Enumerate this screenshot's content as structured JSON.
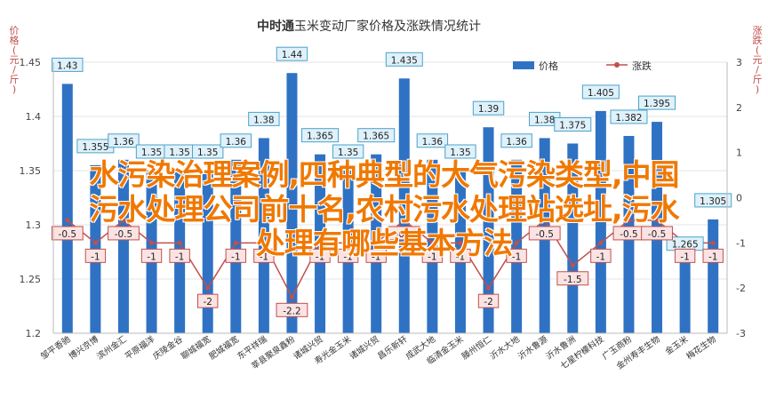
{
  "chart_data": {
    "type": "bar",
    "title_bold": "中时通",
    "title_rest": "玉米变动厂家价格及涨跌情况统计",
    "ylabel_left": "价格(元/斤)",
    "ylabel_right": "涨跌(元/斤)",
    "legend": [
      "价格",
      "涨跌"
    ],
    "ylim_left": [
      1.2,
      1.45
    ],
    "yticks_left": [
      "1.45",
      "1.4",
      "1.35",
      "1.3",
      "1.25",
      "1.2"
    ],
    "ylim_right": [
      -3,
      3
    ],
    "yticks_right": [
      "3",
      "2",
      "1",
      "0",
      "-1",
      "-2",
      "-3"
    ],
    "categories": [
      "邹平香驰",
      "博兴京博",
      "滨州金汇",
      "平原福洋",
      "庆陵金谷",
      "聊城福宽",
      "肥城福宽",
      "东平祥瑞",
      "莘县聚泉鑫粉",
      "诸城兴贸",
      "寿光金玉米",
      "诸城兴贸",
      "昌乐新轩",
      "成武大地",
      "临清金玉米",
      "滕州恒仁",
      "沂水大地",
      "沂水鲁源",
      "沂水鲁洲",
      "七星柠檬科技",
      "广玉商粉",
      "金州寿丰生物",
      "金玉米",
      "梅花生物"
    ],
    "series": [
      {
        "name": "价格",
        "values": [
          1.43,
          1.355,
          1.36,
          1.35,
          1.35,
          1.35,
          1.36,
          1.38,
          1.44,
          1.365,
          1.35,
          1.365,
          1.435,
          1.36,
          1.35,
          1.39,
          1.36,
          1.38,
          1.375,
          1.405,
          1.382,
          1.395,
          1.265,
          1.305
        ]
      },
      {
        "name": "涨跌",
        "values": [
          -0.5,
          -1,
          -0.5,
          -1,
          -1,
          -2,
          -1,
          -1,
          -2.2,
          -1,
          -1,
          -1,
          -0.5,
          -1,
          -1,
          -2,
          -1,
          -0.5,
          -1.5,
          -1,
          -0.5,
          -0.5,
          -1,
          -1
        ]
      }
    ],
    "bar_labels": [
      "1.43",
      "1.355",
      "1.36",
      "1.35",
      "1.35",
      "1.35",
      "1.36",
      "1.38",
      "1.44",
      "1.365",
      "1.35",
      "1.365",
      "1.435",
      "1.36",
      "1.35",
      "1.39",
      "1.36",
      "1.38",
      "1.375",
      "1.405",
      "1.382",
      "1.395",
      "1.265",
      "1.305"
    ],
    "line_labels": [
      "-0.5",
      "-1",
      "-0.5",
      "-1",
      "-1",
      "-2",
      "-1",
      "-1",
      "-2.2",
      "-1",
      "-1",
      "-1",
      "-0.5",
      "-1",
      "-1",
      "-2",
      "-1",
      "-0.5",
      "-1.5",
      "-1",
      "-0.5",
      "-0.5",
      "-1",
      "-1"
    ],
    "colors": {
      "bar": "#2f72c4",
      "line": "#c0504d",
      "bar_label_bg": "#dff1fb",
      "bar_label_border": "#4aa3c8",
      "line_label_bg": "#fbe3e3",
      "line_label_border": "#c0504d",
      "grid": "#e6e6e6",
      "axis_label": "#c0504d",
      "overlay_text": "#f07800"
    },
    "grid": true,
    "legend_position": "top-right"
  },
  "overlay": {
    "line1": "水污染治理案例,四种典型的大气污染类型,中国",
    "line2": "污水处理公司前十名,农村污水处理站选址,污水",
    "line3": "处理有哪些基本方法"
  }
}
